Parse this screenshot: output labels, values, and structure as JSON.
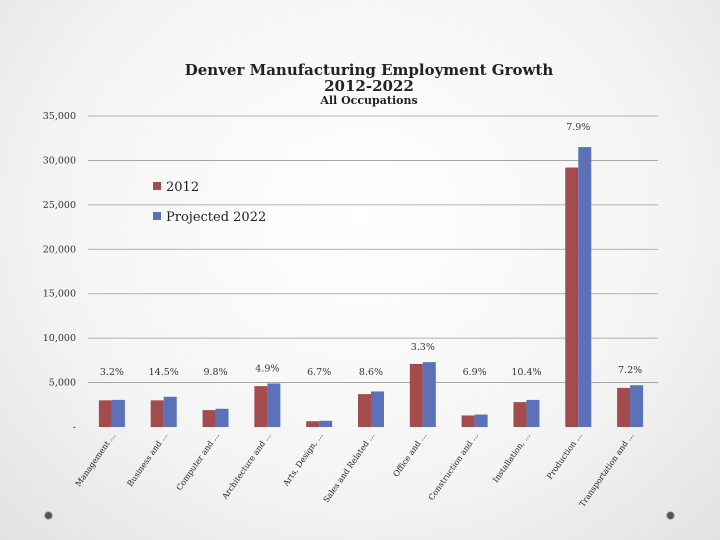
{
  "chart_data": {
    "type": "bar",
    "title": "Denver Manufacturing Employment Growth",
    "subtitle": "2012-2022",
    "subsubtitle": "All Occupations",
    "categories": [
      "Management ...",
      "Business and ...",
      "Computer and ...",
      "Architecture and ...",
      "Arts, Design, ...",
      "Sales and Related ...",
      "Office and ...",
      "Construction and ...",
      "Installation, ...",
      "Production ...",
      "Transportation and ..."
    ],
    "series": [
      {
        "name": "2012",
        "color": "#a34c4e",
        "values": [
          3000,
          3000,
          1900,
          4600,
          650,
          3700,
          7100,
          1300,
          2800,
          29200,
          4400
        ]
      },
      {
        "name": "Projected 2022",
        "color": "#5b72b8",
        "values": [
          3050,
          3400,
          2050,
          4900,
          700,
          4000,
          7300,
          1400,
          3050,
          31500,
          4700
        ]
      }
    ],
    "growth_labels": [
      "3.2%",
      "14.5%",
      "9.8%",
      "4.9%",
      "6.7%",
      "8.6%",
      "3.3%",
      "6.9%",
      "10.4%",
      "7.9%",
      "7.2%"
    ],
    "y_ticks": [
      "-",
      "5,000",
      "10,000",
      "15,000",
      "20,000",
      "25,000",
      "30,000",
      "35,000"
    ],
    "ylim": [
      0,
      35000
    ],
    "legend": [
      "2012",
      "Projected 2022"
    ],
    "legend_position": "top-left",
    "grid": true
  }
}
